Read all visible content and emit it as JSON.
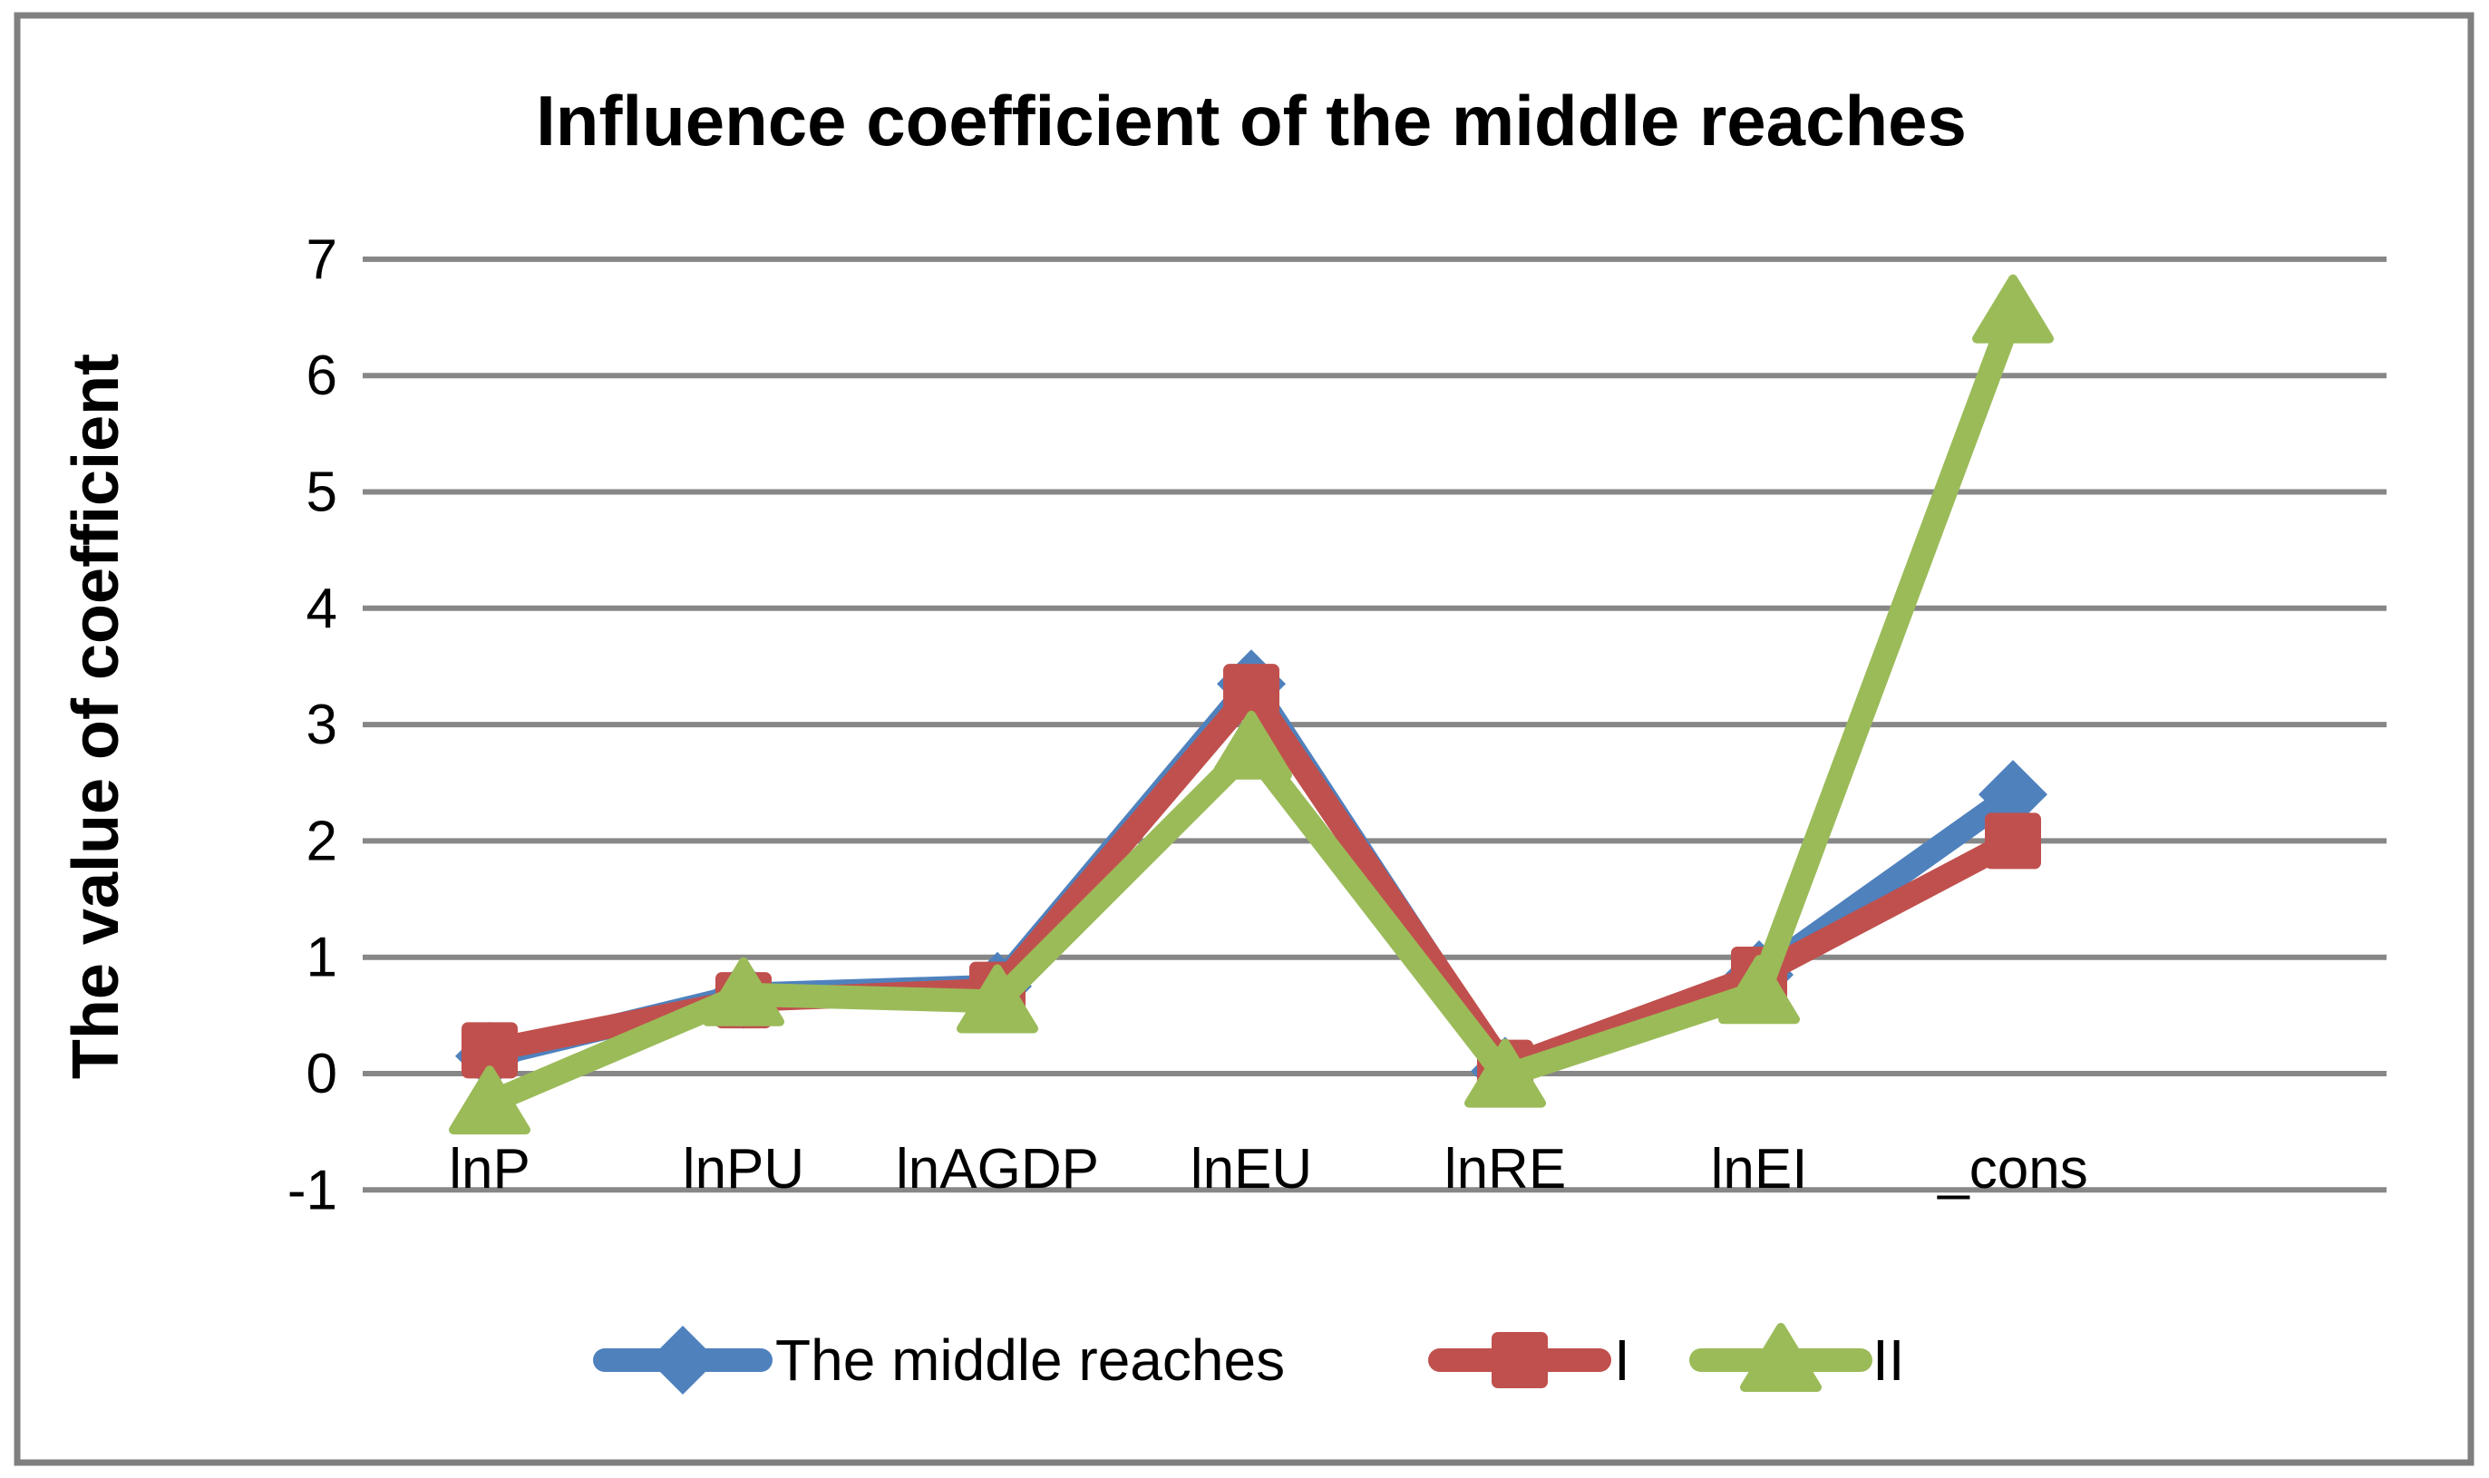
{
  "title": "Influence coefficient of the middle reaches",
  "y_axis_title": "The value of coefficient",
  "colors": {
    "background": "#ffffff",
    "border": "#7f7f7f",
    "gridline": "#878787",
    "text": "#000000",
    "series_blue": "#4F81BD",
    "series_red": "#C0504D",
    "series_green": "#9BBB59"
  },
  "chart_data": {
    "type": "line",
    "title": "Influence coefficient of the middle reaches",
    "xlabel": "",
    "ylabel": "The value of coefficient",
    "ylim": [
      -1,
      7
    ],
    "grid": true,
    "legend_position": "bottom",
    "categories": [
      "lnP",
      "lnPU",
      "lnAGDP",
      "lnEU",
      "lnRE",
      "lnEI",
      "_cons"
    ],
    "y_ticks": [
      7,
      6,
      5,
      4,
      3,
      2,
      1,
      0,
      -1
    ],
    "series": [
      {
        "name": "The middle reaches",
        "marker": "diamond",
        "color": "#4F81BD",
        "values": [
          0.15,
          0.68,
          0.75,
          3.35,
          0.02,
          0.85,
          2.4
        ]
      },
      {
        "name": "I",
        "marker": "square",
        "color": "#C0504D",
        "values": [
          0.2,
          0.63,
          0.72,
          3.28,
          0.05,
          0.85,
          2.0
        ]
      },
      {
        "name": "II",
        "marker": "triangle",
        "color": "#9BBB59",
        "values": [
          -0.25,
          0.68,
          0.62,
          2.8,
          -0.02,
          0.7,
          6.55
        ]
      }
    ]
  },
  "legend": {
    "items": [
      {
        "label": "The middle reaches"
      },
      {
        "label": "I"
      },
      {
        "label": "II"
      }
    ]
  }
}
